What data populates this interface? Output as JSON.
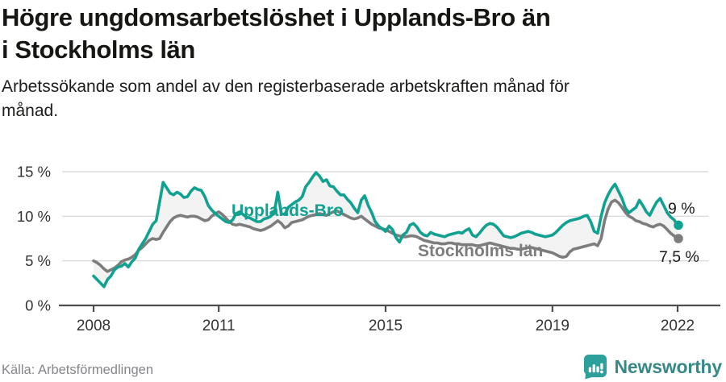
{
  "header": {
    "title_lines": [
      "Högre ungdomsarbetslöshet i Upplands-Bro än",
      "i Stockholms län"
    ],
    "subtitle_lines": [
      "Arbetssökande som andel av den registerbaserade arbetskraften månad för",
      "månad."
    ]
  },
  "footer": {
    "source": "Källa: Arbetsförmedlingen",
    "brand_name": "Newsworthy",
    "brand_icon": "newsworthy-bar-chart-bubble-icon"
  },
  "colors": {
    "accent_teal": "#11a191",
    "series_gray": "#7d7d7d",
    "fill_between": "#f3f3f3",
    "grid": "#dcdcdc",
    "axis": "#4d4d4d",
    "tick_text": "#333333",
    "value_label_text": "#1a1a1a",
    "logo_teal": "#2da09b",
    "logo_text": "#378985",
    "source_text": "#86868a"
  },
  "chart_data": {
    "type": "line",
    "x_interval": "monthly",
    "x_start": "2008-01",
    "x_end": "2022-01",
    "x_tick_years": [
      2008,
      2011,
      2015,
      2019,
      2022
    ],
    "x_tick_labels": [
      "2008",
      "2011",
      "2015",
      "2019",
      "2022"
    ],
    "y_ticks": [
      0,
      5,
      10,
      15
    ],
    "y_tick_labels": [
      "0 %",
      "5 %",
      "10 %",
      "15 %"
    ],
    "ylim": [
      0,
      16.5
    ],
    "grid": "horizontal",
    "fill_between_series": true,
    "legend_position": "inline-labels",
    "series": [
      {
        "name": "Upplands-Bro",
        "slug": "upplands-bro",
        "color": "#11a191",
        "end_label": "9 %",
        "values": [
          3.3,
          2.9,
          2.5,
          2.1,
          2.9,
          3.3,
          4.0,
          4.3,
          4.4,
          4.7,
          4.3,
          4.9,
          5.3,
          6.3,
          6.9,
          7.5,
          8.3,
          9.1,
          9.5,
          11.6,
          13.8,
          13.2,
          12.6,
          12.4,
          12.7,
          12.5,
          12.1,
          12.2,
          12.8,
          13.2,
          13.0,
          12.9,
          12.2,
          11.2,
          10.7,
          10.3,
          10.0,
          9.7,
          9.4,
          9.3,
          9.6,
          10.3,
          10.5,
          10.2,
          9.9,
          9.8,
          9.6,
          9.4,
          9.4,
          9.7,
          9.8,
          10.0,
          10.5,
          12.7,
          10.3,
          10.2,
          11.0,
          11.3,
          11.6,
          11.8,
          12.2,
          13.3,
          13.8,
          14.4,
          14.9,
          14.5,
          13.9,
          14.1,
          13.4,
          13.3,
          12.8,
          12.4,
          12.4,
          11.9,
          11.5,
          10.9,
          10.4,
          11.8,
          12.3,
          11.2,
          10.4,
          9.4,
          8.9,
          8.6,
          8.3,
          8.9,
          8.5,
          7.6,
          7.1,
          7.9,
          8.2,
          9.0,
          9.2,
          8.8,
          8.2,
          7.9,
          7.8,
          8.2,
          8.0,
          7.9,
          7.8,
          7.7,
          7.9,
          8.0,
          8.1,
          8.2,
          8.1,
          8.4,
          8.6,
          7.9,
          7.7,
          8.1,
          8.6,
          9.0,
          9.2,
          9.1,
          8.8,
          8.3,
          7.8,
          7.7,
          7.6,
          7.7,
          7.9,
          8.1,
          8.2,
          8.3,
          8.2,
          8.0,
          7.9,
          7.8,
          7.7,
          7.8,
          7.9,
          8.2,
          8.6,
          9.0,
          9.3,
          9.5,
          9.6,
          9.7,
          9.8,
          10.0,
          10.1,
          9.4,
          8.3,
          8.1,
          10.0,
          11.5,
          12.4,
          13.1,
          13.6,
          12.8,
          12.0,
          10.9,
          10.4,
          10.7,
          11.0,
          11.8,
          11.2,
          10.5,
          10.1,
          10.9,
          11.6,
          12.0,
          11.2,
          10.4,
          9.9,
          9.6,
          9.0
        ]
      },
      {
        "name": "Stockholms län",
        "slug": "stockholms-lan",
        "color": "#7d7d7d",
        "end_label": "7,5 %",
        "values": [
          5.0,
          4.8,
          4.5,
          4.1,
          3.8,
          4.0,
          4.2,
          4.5,
          4.9,
          5.1,
          5.2,
          5.4,
          5.7,
          6.2,
          6.5,
          6.9,
          7.3,
          7.5,
          7.4,
          7.5,
          8.2,
          8.8,
          9.4,
          9.8,
          10.0,
          10.1,
          10.0,
          9.9,
          10.0,
          10.0,
          9.9,
          9.7,
          9.5,
          9.6,
          10.0,
          10.3,
          10.5,
          10.2,
          9.8,
          9.4,
          9.1,
          9.0,
          9.1,
          9.0,
          8.9,
          8.8,
          8.6,
          8.5,
          8.4,
          8.5,
          8.7,
          8.9,
          9.2,
          9.5,
          9.2,
          8.7,
          8.9,
          9.3,
          9.4,
          9.5,
          9.6,
          9.8,
          10.0,
          10.1,
          10.2,
          10.3,
          10.2,
          10.1,
          10.3,
          10.5,
          10.6,
          10.4,
          10.2,
          10.0,
          9.8,
          9.7,
          9.8,
          10.0,
          9.7,
          9.4,
          9.1,
          8.9,
          8.7,
          8.6,
          8.5,
          8.3,
          8.1,
          7.9,
          7.8,
          7.7,
          7.7,
          7.8,
          7.8,
          7.7,
          7.5,
          7.3,
          7.2,
          7.1,
          7.0,
          7.0,
          6.9,
          6.9,
          7.0,
          7.0,
          6.9,
          6.9,
          6.8,
          6.8,
          6.8,
          6.8,
          6.7,
          6.7,
          6.8,
          6.9,
          7.0,
          6.9,
          6.8,
          6.7,
          6.6,
          6.5,
          6.4,
          6.4,
          6.3,
          6.3,
          6.4,
          6.5,
          6.5,
          6.4,
          6.3,
          6.2,
          6.1,
          6.0,
          5.9,
          5.7,
          5.5,
          5.4,
          5.5,
          6.0,
          6.3,
          6.4,
          6.5,
          6.6,
          6.7,
          6.8,
          6.9,
          6.7,
          7.5,
          9.5,
          10.8,
          11.6,
          11.8,
          11.5,
          11.0,
          10.4,
          10.0,
          9.8,
          9.5,
          9.4,
          9.2,
          9.1,
          8.9,
          8.8,
          9.0,
          9.1,
          8.9,
          8.5,
          8.1,
          7.8,
          7.5
        ]
      }
    ]
  }
}
